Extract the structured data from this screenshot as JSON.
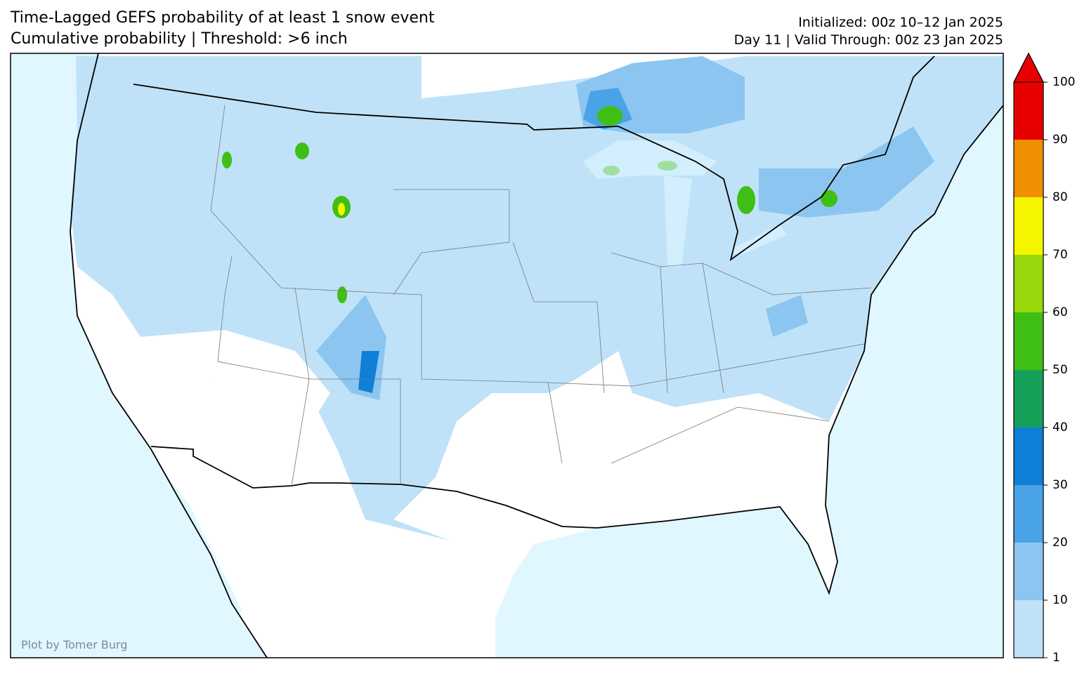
{
  "header": {
    "title": "Time-Lagged GEFS probability of at least 1 snow event",
    "subtitle": "Cumulative probability | Threshold: >6 inch",
    "initialized": "Initialized: 00z 10–12 Jan 2025",
    "valid": "Day 11 | Valid Through: 00z 23 Jan 2025"
  },
  "credit": "Plot by Tomer Burg",
  "colorbar": {
    "ticks": [
      1,
      10,
      20,
      30,
      40,
      50,
      60,
      70,
      80,
      90,
      100
    ],
    "colors": [
      "#c0e2f8",
      "#8cc6f0",
      "#4aa3e6",
      "#0f7fd8",
      "#17a05a",
      "#3fbf14",
      "#99d80a",
      "#f5f500",
      "#f09000",
      "#e80000"
    ],
    "extend_color": "#e80000"
  }
}
